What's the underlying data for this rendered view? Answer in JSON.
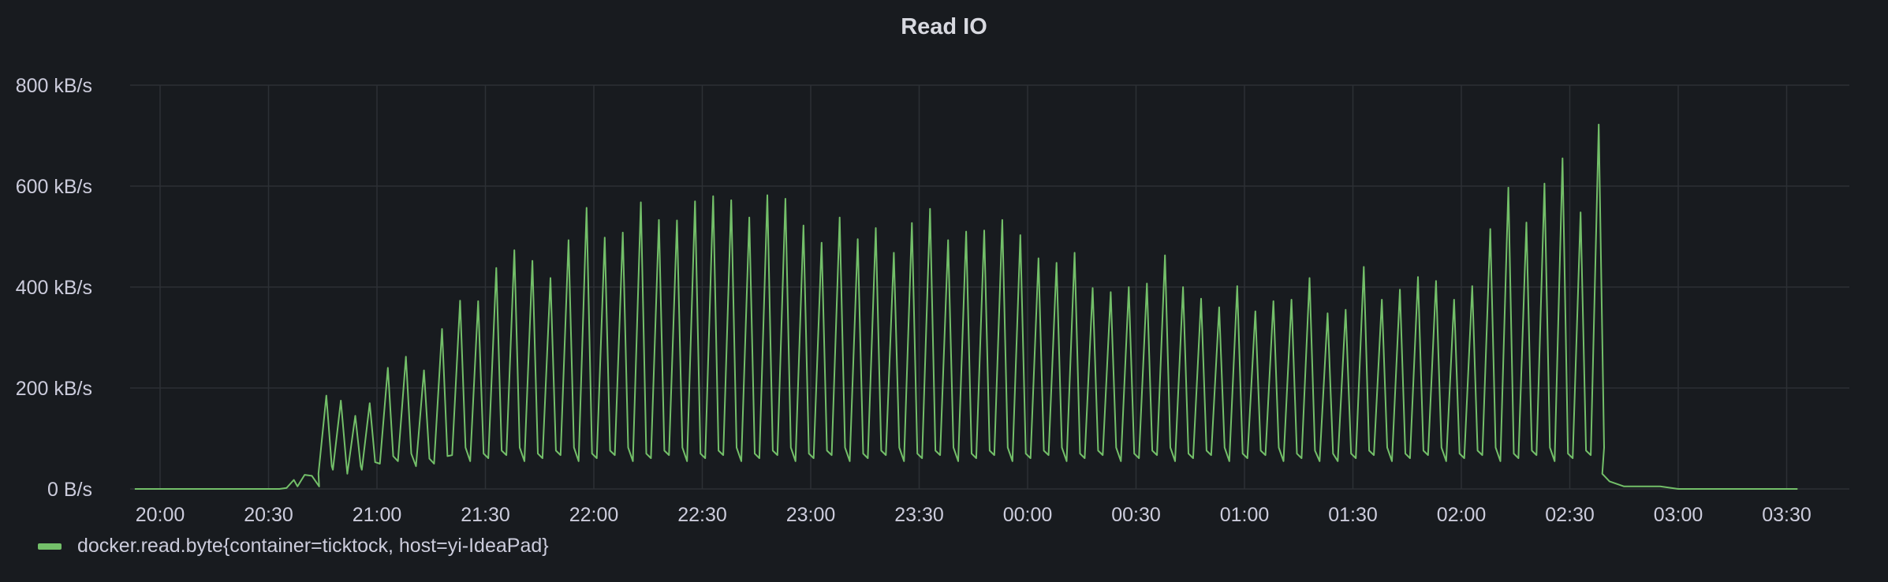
{
  "panel": {
    "title": "Read IO"
  },
  "colors": {
    "background": "#181b1f",
    "grid": "#2c3035",
    "series": "#73bf69",
    "text": "#ccccdc"
  },
  "chart_data": {
    "type": "line",
    "title": "Read IO",
    "xlabel": "",
    "ylabel": "",
    "x_ticks": [
      "20:00",
      "20:30",
      "21:00",
      "21:30",
      "22:00",
      "22:30",
      "23:00",
      "23:30",
      "00:00",
      "00:30",
      "01:00",
      "01:30",
      "02:00",
      "02:30",
      "03:00",
      "03:30"
    ],
    "y_ticks": [
      "0 B/s",
      "200 kB/s",
      "400 kB/s",
      "600 kB/s",
      "800 kB/s"
    ],
    "ylim": [
      0,
      800
    ],
    "y_unit": "kB/s",
    "grid": true,
    "legend_position": "bottom-left",
    "series": [
      {
        "name": "docker.read.byte{container=ticktock, host=yi-IdeaPad}",
        "peaks": [
          [
            "20:46",
            185
          ],
          [
            "20:50",
            175
          ],
          [
            "20:54",
            145
          ],
          [
            "20:58",
            170
          ],
          [
            "21:03",
            240
          ],
          [
            "21:08",
            262
          ],
          [
            "21:13",
            235
          ],
          [
            "21:18",
            317
          ],
          [
            "21:23",
            373
          ],
          [
            "21:28",
            372
          ],
          [
            "21:33",
            438
          ],
          [
            "21:38",
            473
          ],
          [
            "21:43",
            452
          ],
          [
            "21:48",
            418
          ],
          [
            "21:53",
            493
          ],
          [
            "21:58",
            557
          ],
          [
            "22:03",
            498
          ],
          [
            "22:08",
            508
          ],
          [
            "22:13",
            568
          ],
          [
            "22:18",
            533
          ],
          [
            "22:23",
            532
          ],
          [
            "22:28",
            570
          ],
          [
            "22:33",
            580
          ],
          [
            "22:38",
            572
          ],
          [
            "22:43",
            538
          ],
          [
            "22:48",
            582
          ],
          [
            "22:53",
            575
          ],
          [
            "22:58",
            522
          ],
          [
            "23:03",
            488
          ],
          [
            "23:08",
            538
          ],
          [
            "23:13",
            495
          ],
          [
            "23:18",
            517
          ],
          [
            "23:23",
            468
          ],
          [
            "23:28",
            527
          ],
          [
            "23:33",
            555
          ],
          [
            "23:38",
            493
          ],
          [
            "23:43",
            510
          ],
          [
            "23:48",
            512
          ],
          [
            "23:53",
            533
          ],
          [
            "23:58",
            503
          ],
          [
            "00:03",
            457
          ],
          [
            "00:08",
            448
          ],
          [
            "00:13",
            468
          ],
          [
            "00:18",
            398
          ],
          [
            "00:23",
            390
          ],
          [
            "00:28",
            400
          ],
          [
            "00:33",
            407
          ],
          [
            "00:38",
            463
          ],
          [
            "00:43",
            400
          ],
          [
            "00:48",
            377
          ],
          [
            "00:53",
            360
          ],
          [
            "00:58",
            402
          ],
          [
            "01:03",
            352
          ],
          [
            "01:08",
            372
          ],
          [
            "01:13",
            375
          ],
          [
            "01:18",
            418
          ],
          [
            "01:23",
            348
          ],
          [
            "01:28",
            355
          ],
          [
            "01:33",
            440
          ],
          [
            "01:38",
            375
          ],
          [
            "01:43",
            395
          ],
          [
            "01:48",
            420
          ],
          [
            "01:53",
            412
          ],
          [
            "01:58",
            375
          ],
          [
            "02:03",
            402
          ],
          [
            "02:08",
            515
          ],
          [
            "02:13",
            597
          ],
          [
            "02:18",
            528
          ],
          [
            "02:23",
            605
          ],
          [
            "02:28",
            655
          ],
          [
            "02:33",
            548
          ],
          [
            "02:38",
            722
          ]
        ],
        "tail": [
          [
            "02:39",
            30
          ],
          [
            "02:41",
            15
          ],
          [
            "02:45",
            5
          ],
          [
            "02:55",
            5
          ],
          [
            "03:00",
            0
          ],
          [
            "03:33",
            0
          ]
        ]
      }
    ]
  }
}
